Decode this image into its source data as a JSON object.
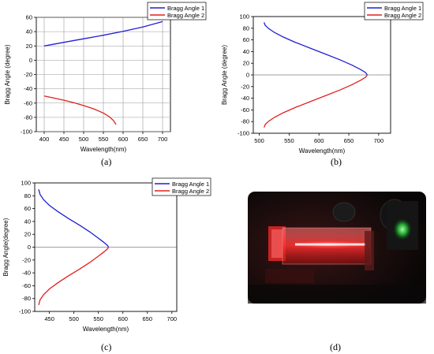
{
  "chart_data": [
    {
      "type": "line",
      "panel_label": "(a)",
      "xlabel": "Wavelength(nm)",
      "ylabel": "Bragg Angle (degree)",
      "xlim": [
        380,
        720
      ],
      "ylim": [
        -100,
        60
      ],
      "xticks": [
        400,
        450,
        500,
        550,
        600,
        650,
        700
      ],
      "yticks": [
        -100,
        -80,
        -60,
        -40,
        -20,
        0,
        20,
        40,
        60
      ],
      "grid": true,
      "legend": "top-right",
      "series": [
        {
          "name": "Bragg Angle 1",
          "color": "#1f1fd6",
          "x": [
            400,
            450,
            500,
            550,
            600,
            650,
            700
          ],
          "y": [
            20,
            25,
            30,
            35,
            40.5,
            46.5,
            54
          ]
        },
        {
          "name": "Bragg Angle 2",
          "color": "#e0201e",
          "x": [
            400,
            425,
            450,
            475,
            500,
            525,
            550,
            565,
            575,
            582
          ],
          "y": [
            -50,
            -53,
            -56,
            -59.5,
            -63.5,
            -68,
            -74,
            -79,
            -84,
            -90
          ]
        }
      ]
    },
    {
      "type": "line",
      "panel_label": "(b)",
      "xlabel": "Wavelength(nm)",
      "ylabel": "Bragg Angle (degree)",
      "xlim": [
        490,
        720
      ],
      "ylim": [
        -100,
        100
      ],
      "xticks": [
        500,
        550,
        600,
        650,
        700
      ],
      "yticks": [
        -100,
        -80,
        -60,
        -40,
        -20,
        0,
        20,
        40,
        60,
        80,
        100
      ],
      "grid": false,
      "legend": "top-right",
      "series": [
        {
          "name": "Bragg Angle 1",
          "color": "#1f1fd6",
          "x": [
            508,
            510,
            515,
            525,
            540,
            560,
            585,
            610,
            635,
            655,
            670,
            678,
            681
          ],
          "y": [
            90,
            85,
            80,
            73,
            65,
            56,
            46,
            36,
            26,
            17,
            9,
            4,
            0
          ]
        },
        {
          "name": "Bragg Angle 2",
          "color": "#e0201e",
          "x": [
            681,
            678,
            670,
            655,
            635,
            610,
            585,
            560,
            540,
            525,
            515,
            510,
            508
          ],
          "y": [
            0,
            -4,
            -9,
            -17,
            -26,
            -36,
            -46,
            -56,
            -65,
            -73,
            -80,
            -85,
            -90
          ]
        }
      ]
    },
    {
      "type": "line",
      "panel_label": "(c)",
      "xlabel": "Wavelength(nm)",
      "ylabel": "Bragg Angle(degree)",
      "xlim": [
        420,
        710
      ],
      "ylim": [
        -100,
        100
      ],
      "xticks": [
        450,
        500,
        550,
        600,
        650,
        700
      ],
      "yticks": [
        -100,
        -80,
        -60,
        -40,
        -20,
        0,
        20,
        40,
        60,
        80,
        100
      ],
      "grid": false,
      "legend": "top-right",
      "series": [
        {
          "name": "Bragg Angle 1",
          "color": "#1f1fd6",
          "x": [
            428,
            431,
            438,
            450,
            468,
            490,
            512,
            532,
            550,
            562,
            568,
            571
          ],
          "y": [
            90,
            82,
            74,
            65,
            55,
            44,
            34,
            24,
            14,
            7,
            3,
            0
          ]
        },
        {
          "name": "Bragg Angle 2",
          "color": "#e0201e",
          "x": [
            571,
            568,
            562,
            550,
            532,
            512,
            490,
            468,
            450,
            438,
            431,
            428
          ],
          "y": [
            0,
            -3,
            -7,
            -14,
            -24,
            -34,
            -44,
            -55,
            -65,
            -74,
            -82,
            -90
          ]
        }
      ]
    }
  ],
  "panel_d": {
    "label": "(d)"
  }
}
